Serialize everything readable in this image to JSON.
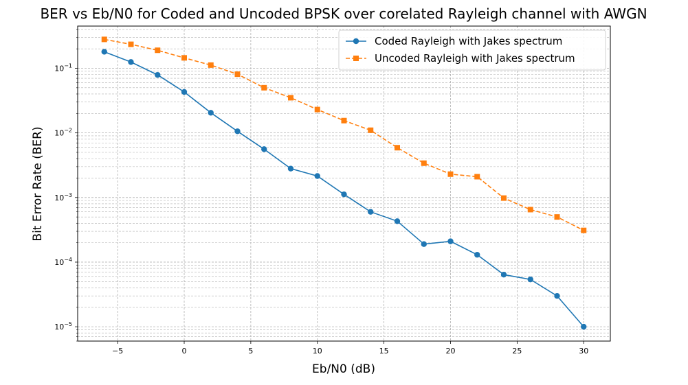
{
  "chart_data": {
    "type": "line",
    "title": "BER vs Eb/N0 for Coded and Uncoded BPSK over corelated Rayleigh channel with AWGN",
    "xlabel": "Eb/N0 (dB)",
    "ylabel": "Bit Error Rate (BER)",
    "x_scale": "linear",
    "y_scale": "log",
    "xlim": [
      -8,
      32
    ],
    "ylim": [
      6e-06,
      0.45
    ],
    "grid": true,
    "grid_style": "dashed, major and minor",
    "legend_position": "top-right",
    "x_ticks": [
      {
        "value": -5,
        "label": "−5"
      },
      {
        "value": 0,
        "label": "0"
      },
      {
        "value": 5,
        "label": "5"
      },
      {
        "value": 10,
        "label": "10"
      },
      {
        "value": 15,
        "label": "15"
      },
      {
        "value": 20,
        "label": "20"
      },
      {
        "value": 25,
        "label": "25"
      },
      {
        "value": 30,
        "label": "30"
      }
    ],
    "y_ticks": [
      {
        "value": 1e-05,
        "base": "10",
        "exp": "−5"
      },
      {
        "value": 0.0001,
        "base": "10",
        "exp": "−4"
      },
      {
        "value": 0.001,
        "base": "10",
        "exp": "−3"
      },
      {
        "value": 0.01,
        "base": "10",
        "exp": "−2"
      },
      {
        "value": 0.1,
        "base": "10",
        "exp": "−1"
      }
    ],
    "x": [
      -6,
      -4,
      -2,
      0,
      2,
      4,
      6,
      8,
      10,
      12,
      14,
      16,
      18,
      20,
      22,
      24,
      26,
      28,
      30
    ],
    "series": [
      {
        "name": "Coded Rayleigh with Jakes spectrum",
        "color": "#1f77b4",
        "marker": "circle",
        "line_style": "solid",
        "values": [
          0.18,
          0.125,
          0.079,
          0.043,
          0.0205,
          0.0106,
          0.0056,
          0.0028,
          0.00215,
          0.00112,
          0.0006,
          0.00043,
          0.00019,
          0.00021,
          0.00013,
          6.4e-05,
          5.4e-05,
          3e-05,
          1e-05
        ]
      },
      {
        "name": "Uncoded Rayleigh with Jakes spectrum",
        "color": "#ff7f0e",
        "marker": "square",
        "line_style": "dashed",
        "values": [
          0.28,
          0.235,
          0.19,
          0.145,
          0.112,
          0.081,
          0.05,
          0.035,
          0.023,
          0.0155,
          0.011,
          0.0059,
          0.0034,
          0.0023,
          0.0021,
          0.00098,
          0.00065,
          0.0005,
          0.00031
        ]
      }
    ]
  }
}
